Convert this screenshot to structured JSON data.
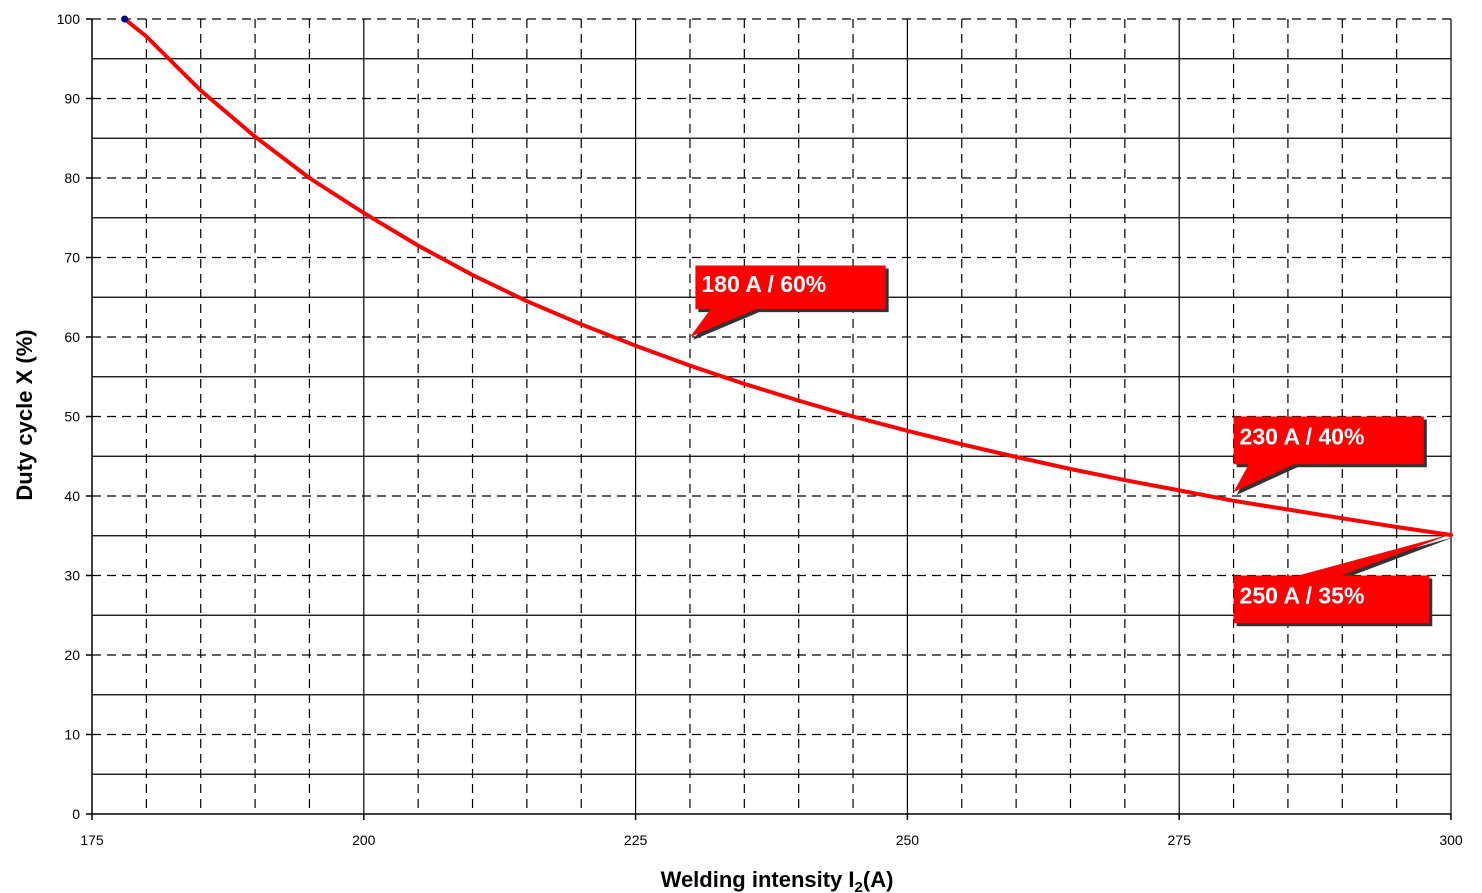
{
  "chart_data": {
    "type": "line",
    "title": "",
    "xlabel": "Welding intensity I",
    "xlabel_sub": "2",
    "xlabel_suffix": "(A)",
    "ylabel": "Duty cycle X (%)",
    "xlim": [
      175,
      300
    ],
    "ylim": [
      0,
      100
    ],
    "x_ticks": [
      175,
      200,
      225,
      250,
      275,
      300
    ],
    "y_ticks": [
      0,
      10,
      20,
      30,
      40,
      50,
      60,
      70,
      80,
      90,
      100
    ],
    "x_minor_step": 5,
    "y_minor_step": 5,
    "grid": true,
    "legend": "none",
    "series": [
      {
        "color": "#ff0000",
        "x": [
          178,
          180,
          185,
          190,
          195,
          200,
          205,
          210,
          215,
          220,
          225,
          230,
          235,
          240,
          245,
          250,
          255,
          260,
          265,
          270,
          275,
          280,
          285,
          290,
          295,
          300
        ],
        "y": [
          100,
          97.8,
          91.0,
          85.2,
          80.0,
          75.6,
          71.5,
          67.8,
          64.5,
          61.6,
          58.9,
          56.4,
          54.1,
          52.0,
          50.0,
          48.2,
          46.5,
          44.9,
          43.4,
          42.0,
          40.7,
          39.4,
          38.3,
          37.2,
          36.1,
          35.1
        ]
      }
    ],
    "start_marker": {
      "x": 178,
      "y": 100,
      "color": "#000080"
    },
    "annotations": [
      {
        "text": "180 A / 60%",
        "x": 230,
        "y": 60,
        "box_x": 230.5,
        "box_y_top": 69,
        "box_x_end": 248,
        "box_y_bottom": 63.5
      },
      {
        "text": "230 A / 40%",
        "x": 280,
        "y": 40.5,
        "box_x": 280,
        "box_y_top": 50,
        "box_x_end": 297.5,
        "box_y_bottom": 44
      },
      {
        "text": "250 A / 35%",
        "x": 300,
        "y": 35.2,
        "box_x": 280,
        "box_y_top": 30,
        "box_x_end": 298,
        "box_y_bottom": 24
      }
    ],
    "colors": {
      "curve": "#ff0000",
      "callout_fill": "#ff0000",
      "callout_text": "#ffffff"
    }
  }
}
